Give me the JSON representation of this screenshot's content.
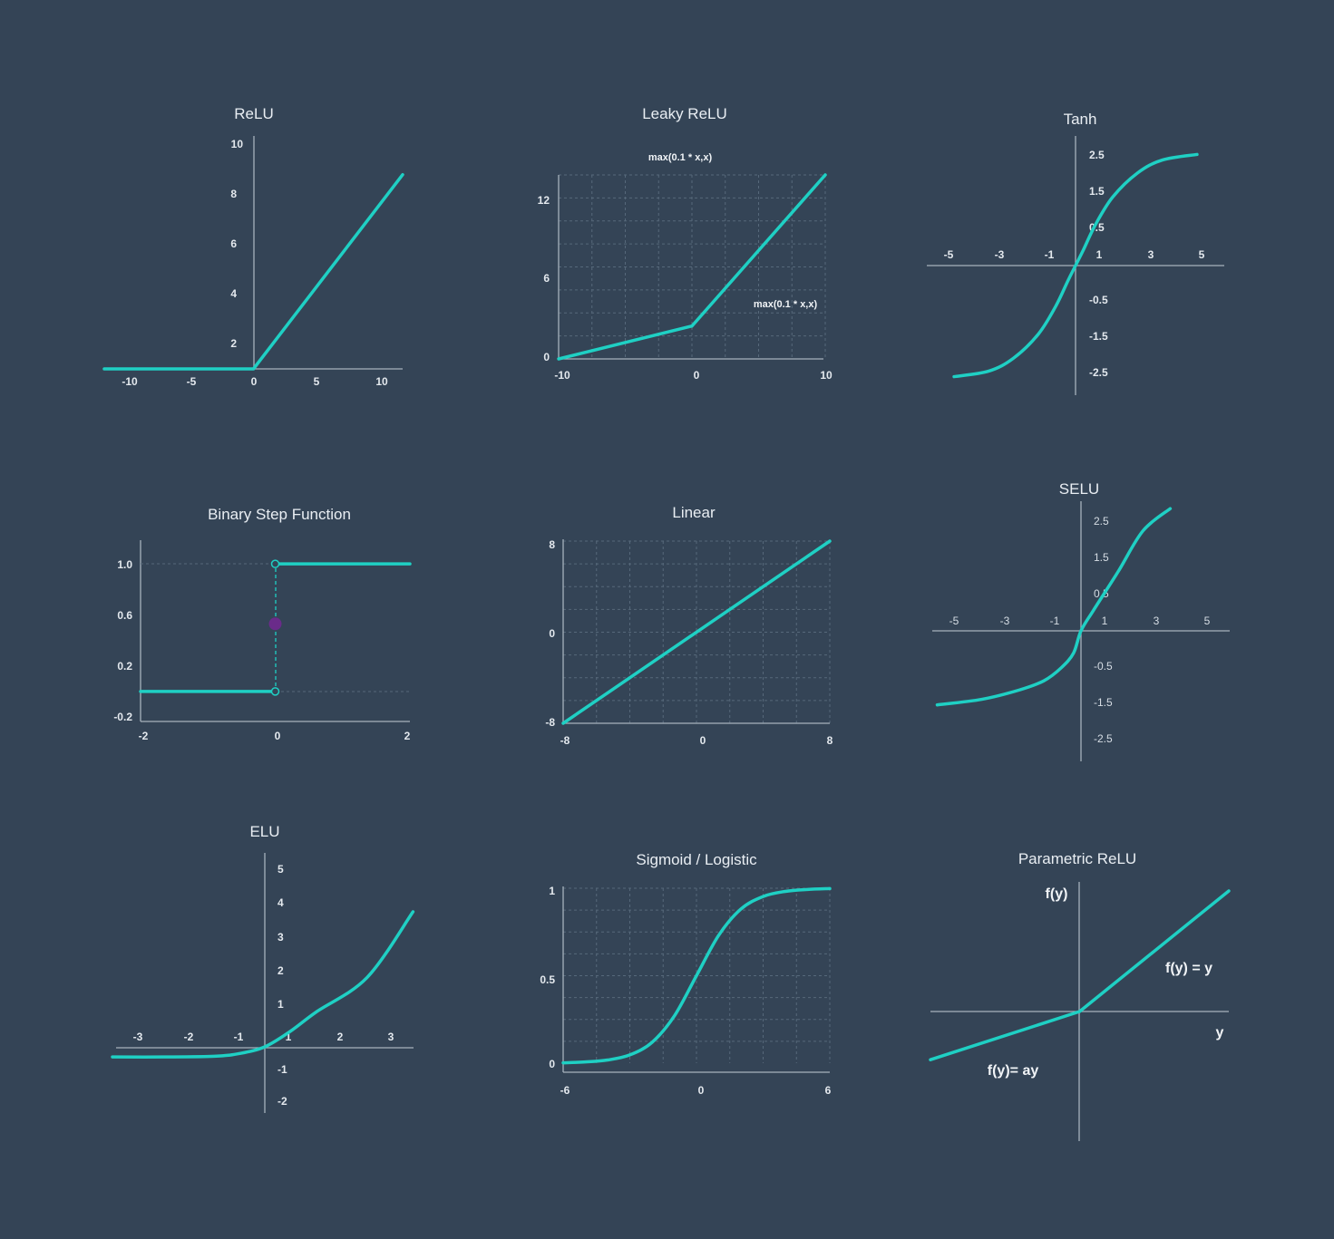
{
  "colors": {
    "background": "#344456",
    "curve": "#1fd0c4",
    "axis": "#a7b2bd",
    "grid": "#56687a",
    "text": "#e9eef3",
    "midpoint": "#6a2b8a"
  },
  "chart_data": [
    {
      "id": "relu",
      "type": "line",
      "title": "ReLU",
      "xlim": [
        -12,
        12
      ],
      "ylim": [
        0,
        10.5
      ],
      "xticks": [
        {
          "v": -10,
          "label": "-10"
        },
        {
          "v": -5,
          "label": "-5"
        },
        {
          "v": 0,
          "label": "0"
        },
        {
          "v": 5,
          "label": "5"
        },
        {
          "v": 10,
          "label": "10"
        }
      ],
      "yticks": [
        {
          "v": 2,
          "label": "2"
        },
        {
          "v": 4,
          "label": "4"
        },
        {
          "v": 6,
          "label": "6"
        },
        {
          "v": 8,
          "label": "8"
        },
        {
          "v": 10,
          "label": "10"
        }
      ],
      "grid": false,
      "series": [
        {
          "x": [
            -12,
            0,
            12
          ],
          "y": [
            0,
            0,
            9
          ]
        }
      ]
    },
    {
      "id": "leaky-relu",
      "type": "line",
      "title": "Leaky ReLU",
      "xlim": [
        -10,
        10
      ],
      "ylim": [
        0,
        14
      ],
      "xticks": [
        {
          "v": -10,
          "label": "-10"
        },
        {
          "v": 0,
          "label": "0"
        },
        {
          "v": 10,
          "label": "10"
        }
      ],
      "yticks": [
        {
          "v": 0,
          "label": "0"
        },
        {
          "v": 6,
          "label": "6"
        },
        {
          "v": 12,
          "label": "12"
        }
      ],
      "grid": true,
      "annotations": [
        "max(0.1 * x,x)",
        "max(0.1 * x,x)"
      ],
      "series": [
        {
          "x": [
            -10,
            0,
            10
          ],
          "y": [
            0,
            2.5,
            14
          ]
        }
      ]
    },
    {
      "id": "tanh",
      "type": "line",
      "title": "Tanh",
      "xlim": [
        -6,
        6
      ],
      "ylim": [
        -3.5,
        3.5
      ],
      "xticks": [
        {
          "v": -5,
          "label": "-5"
        },
        {
          "v": -3,
          "label": "-3"
        },
        {
          "v": -1,
          "label": "-1"
        },
        {
          "v": 1,
          "label": "1"
        },
        {
          "v": 3,
          "label": "3"
        },
        {
          "v": 5,
          "label": "5"
        }
      ],
      "yticks": [
        {
          "v": 2.5,
          "label": "2.5"
        },
        {
          "v": 1.5,
          "label": "1.5"
        },
        {
          "v": 0.5,
          "label": "0.5"
        },
        {
          "v": -0.5,
          "label": "-0.5"
        },
        {
          "v": -1.5,
          "label": "-1.5"
        },
        {
          "v": -2.5,
          "label": "-2.5"
        }
      ],
      "grid": false,
      "series": [
        {
          "x": [
            -4.9,
            -3.5,
            -2.5,
            -1.5,
            -0.8,
            -0.3,
            0,
            0.3,
            0.8,
            1.5,
            2.5,
            3.5,
            4.9
          ],
          "y": [
            -3,
            -2.85,
            -2.5,
            -1.85,
            -1.1,
            -0.4,
            0,
            0.4,
            1.1,
            1.85,
            2.5,
            2.85,
            3
          ]
        }
      ]
    },
    {
      "id": "binary-step",
      "type": "line",
      "title": "Binary Step Function",
      "xlim": [
        -2,
        2
      ],
      "ylim": [
        -0.2,
        1.2
      ],
      "xticks": [
        {
          "v": -2,
          "label": "-2"
        },
        {
          "v": 0,
          "label": "0"
        },
        {
          "v": 2,
          "label": "2"
        }
      ],
      "yticks": [
        {
          "v": 1.0,
          "label": "1.0"
        },
        {
          "v": 0.6,
          "label": "0.6"
        },
        {
          "v": 0.2,
          "label": "0.2"
        },
        {
          "v": -0.2,
          "label": "-0.2"
        }
      ],
      "grid": false,
      "series": [
        {
          "x": [
            -2,
            0
          ],
          "y": [
            0,
            0
          ]
        },
        {
          "x": [
            0,
            2
          ],
          "y": [
            1,
            1
          ]
        }
      ],
      "midpoint": {
        "x": 0,
        "y": 0.53
      }
    },
    {
      "id": "linear",
      "type": "line",
      "title": "Linear",
      "xlim": [
        -8,
        8
      ],
      "ylim": [
        -8,
        8
      ],
      "xticks": [
        {
          "v": -8,
          "label": "-8"
        },
        {
          "v": 0,
          "label": "0"
        },
        {
          "v": 8,
          "label": "8"
        }
      ],
      "yticks": [
        {
          "v": 8,
          "label": "8"
        },
        {
          "v": 0,
          "label": "0"
        },
        {
          "v": -8,
          "label": "-8"
        }
      ],
      "grid": true,
      "series": [
        {
          "x": [
            -8,
            8
          ],
          "y": [
            -8,
            8
          ]
        }
      ]
    },
    {
      "id": "selu",
      "type": "line",
      "title": "SELU",
      "xlim": [
        -6,
        6
      ],
      "ylim": [
        -3.5,
        3.5
      ],
      "xticks": [
        {
          "v": -5,
          "label": "-5"
        },
        {
          "v": -3,
          "label": "-3"
        },
        {
          "v": -1,
          "label": "-1"
        },
        {
          "v": 1,
          "label": "1"
        },
        {
          "v": 3,
          "label": "3"
        },
        {
          "v": 5,
          "label": "5"
        }
      ],
      "yticks": [
        {
          "v": 2.5,
          "label": "2.5"
        },
        {
          "v": 1.5,
          "label": "1.5"
        },
        {
          "v": 0.5,
          "label": "0.5"
        },
        {
          "v": -0.5,
          "label": "-0.5"
        },
        {
          "v": -1.5,
          "label": "-1.5"
        },
        {
          "v": -2.5,
          "label": "-2.5"
        }
      ],
      "grid": false,
      "series": [
        {
          "x": [
            -5.8,
            -4,
            -2.5,
            -1.5,
            -0.8,
            -0.3,
            0,
            0.5,
            1.5,
            2.5,
            3.6
          ],
          "y": [
            -2,
            -1.85,
            -1.6,
            -1.35,
            -1,
            -0.6,
            0,
            0.55,
            1.6,
            2.7,
            3.3
          ]
        }
      ]
    },
    {
      "id": "elu",
      "type": "line",
      "title": "ELU",
      "xlim": [
        -3,
        3
      ],
      "ylim": [
        -2,
        5
      ],
      "xticks": [
        {
          "v": -3,
          "label": "-3"
        },
        {
          "v": -2,
          "label": "-2"
        },
        {
          "v": -1,
          "label": "-1"
        },
        {
          "v": 1,
          "label": "1"
        },
        {
          "v": 2,
          "label": "2"
        },
        {
          "v": 3,
          "label": "3"
        }
      ],
      "yticks": [
        {
          "v": 5,
          "label": "5"
        },
        {
          "v": 4,
          "label": "4"
        },
        {
          "v": 3,
          "label": "3"
        },
        {
          "v": 2,
          "label": "2"
        },
        {
          "v": 1,
          "label": "1"
        },
        {
          "v": -1,
          "label": "-1"
        },
        {
          "v": -2,
          "label": "-2"
        }
      ],
      "grid": false,
      "series": [
        {
          "x": [
            -3,
            -2,
            -1,
            -0.5,
            0,
            0.5,
            1,
            2,
            2.9
          ],
          "y": [
            -0.3,
            -0.3,
            -0.28,
            -0.2,
            0,
            0.45,
            1,
            2,
            3.9
          ]
        }
      ]
    },
    {
      "id": "sigmoid",
      "type": "line",
      "title": "Sigmoid / Logistic",
      "xlim": [
        -6,
        6
      ],
      "ylim": [
        0,
        1
      ],
      "xticks": [
        {
          "v": -6,
          "label": "-6"
        },
        {
          "v": 0,
          "label": "0"
        },
        {
          "v": 6,
          "label": "6"
        }
      ],
      "yticks": [
        {
          "v": 1,
          "label": "1"
        },
        {
          "v": 0.5,
          "label": "0.5"
        },
        {
          "v": 0,
          "label": "0"
        }
      ],
      "grid": true,
      "series": [
        {
          "x": [
            -6,
            -5,
            -4,
            -3,
            -2,
            -1,
            0,
            1,
            2,
            3,
            4,
            5,
            6
          ],
          "y": [
            0.002,
            0.007,
            0.018,
            0.047,
            0.119,
            0.269,
            0.5,
            0.731,
            0.881,
            0.953,
            0.982,
            0.993,
            0.998
          ]
        }
      ]
    },
    {
      "id": "prelu",
      "type": "line",
      "title": "Parametric ReLU",
      "xlim": [
        -5,
        5
      ],
      "ylim": [
        -4.3,
        4.3
      ],
      "xlabel": "y",
      "ylabel": "f(y)",
      "annotations": [
        "f(y) = y",
        "f(y)= ay"
      ],
      "grid": false,
      "series": [
        {
          "x": [
            -5,
            0,
            5
          ],
          "y": [
            -1.6,
            0,
            4
          ]
        }
      ]
    }
  ]
}
